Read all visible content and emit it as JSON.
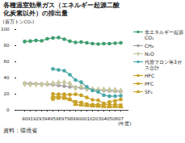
{
  "chart_data": {
    "type": "line",
    "title": "各種温室効果ガス（エネルギー起源二酸化炭素以外）の排出量",
    "y_label": "(百万トンCO₂)",
    "x_label": "(年度)",
    "source": "資料：環境省",
    "categories": [
      "90",
      "91",
      "92",
      "93",
      "94",
      "95",
      "96",
      "97",
      "98",
      "99",
      "00",
      "01",
      "02",
      "03",
      "04",
      "05",
      "06",
      "07"
    ],
    "ylim": [
      0,
      100
    ],
    "yticks": [
      0,
      20,
      40,
      60,
      80,
      100
    ],
    "grid": false,
    "legend": "right",
    "series": [
      {
        "name": "非エネルギー起源CO₂",
        "color": "#3f9e6e",
        "marker": "circle",
        "values": [
          85.1,
          85.6,
          86.4,
          86.0,
          88.5,
          89.5,
          90.0,
          88.0,
          85.5,
          84.0,
          84.5,
          83.5,
          82.5,
          82.0,
          82.5,
          82.5,
          83.0,
          83.5
        ]
      },
      {
        "name": "CH₄",
        "color": "#a0a0a0",
        "marker": "circle",
        "values": [
          33.4,
          33.1,
          32.9,
          32.5,
          32.0,
          31.5,
          30.8,
          29.9,
          29.0,
          28.3,
          27.6,
          26.5,
          25.8,
          25.0,
          24.6,
          24.0,
          23.5,
          23.0
        ]
      },
      {
        "name": "N₂O",
        "color": "#c8c8a0",
        "marker": "diamond",
        "values": [
          32.6,
          32.0,
          32.2,
          31.8,
          32.8,
          33.2,
          34.0,
          34.5,
          33.0,
          27.5,
          29.5,
          26.5,
          25.8,
          25.5,
          25.6,
          25.4,
          25.0,
          24.0
        ]
      },
      {
        "name": "代替フロン等3ガス合計",
        "color": "#4aa8a8",
        "marker": "circle",
        "values": [
          null,
          null,
          null,
          null,
          null,
          51.2,
          50.0,
          49.0,
          44.0,
          37.5,
          34.8,
          29.0,
          24.5,
          22.8,
          18.7,
          17.4,
          17.5,
          18.0
        ]
      },
      {
        "name": "HFC",
        "color": "#c9a227",
        "marker": "circle",
        "values": [
          null,
          null,
          null,
          null,
          null,
          20.2,
          19.9,
          19.8,
          19.3,
          19.8,
          18.6,
          15.8,
          13.0,
          12.4,
          8.3,
          10.5,
          11.7,
          13.3
        ]
      },
      {
        "name": "PFC",
        "color": "#c9a227",
        "marker": "square",
        "values": [
          null,
          null,
          null,
          null,
          null,
          14.0,
          15.2,
          16.9,
          13.3,
          10.5,
          9.7,
          7.5,
          6.9,
          6.9,
          7.0,
          7.0,
          7.0,
          6.4
        ]
      },
      {
        "name": "SF₆",
        "color": "#c9a227",
        "marker": "triangle",
        "values": [
          null,
          null,
          null,
          null,
          null,
          16.9,
          17.5,
          15.0,
          13.4,
          7.5,
          6.8,
          5.9,
          5.4,
          5.3,
          4.8,
          4.6,
          4.8,
          4.4
        ]
      }
    ]
  }
}
